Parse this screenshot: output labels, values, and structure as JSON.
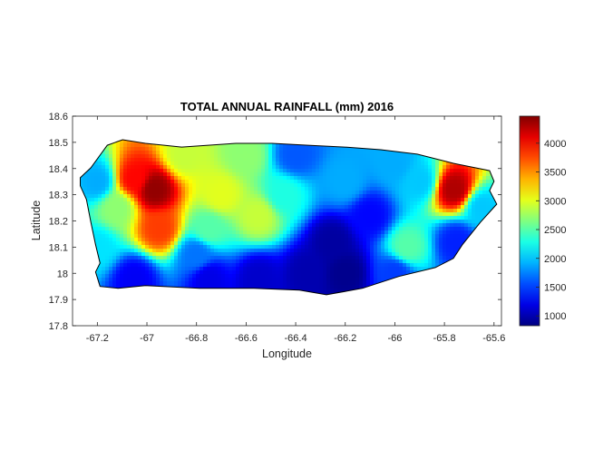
{
  "chart_data": {
    "type": "heatmap",
    "title": "TOTAL ANNUAL RAINFALL (mm) 2016",
    "xlabel": "Longitude",
    "ylabel": "Latitude",
    "xlim": [
      -67.3,
      -65.57
    ],
    "ylim": [
      17.8,
      18.6
    ],
    "xticks": [
      -67.2,
      -67,
      -66.8,
      -66.6,
      -66.4,
      -66.2,
      -66,
      -65.8,
      -65.6
    ],
    "xtick_labels": [
      "-67.2",
      "-67",
      "-66.8",
      "-66.6",
      "-66.4",
      "-66.2",
      "-66",
      "-65.8",
      "-65.6"
    ],
    "yticks": [
      17.8,
      17.9,
      18,
      18.1,
      18.2,
      18.3,
      18.4,
      18.5,
      18.6
    ],
    "ytick_labels": [
      "17.8",
      "17.9",
      "18",
      "18.1",
      "18.2",
      "18.3",
      "18.4",
      "18.5",
      "18.6"
    ],
    "colormap": "jet",
    "clim": [
      830,
      4470
    ],
    "colorbar_ticks": [
      1000,
      1500,
      2000,
      2500,
      3000,
      3500,
      4000
    ],
    "colorbar_tick_labels": [
      "1000",
      "1500",
      "2000",
      "2500",
      "3000",
      "3500",
      "4000"
    ],
    "grid": false,
    "coastline": [
      [
        -67.269,
        18.365
      ],
      [
        -67.226,
        18.403
      ],
      [
        -67.16,
        18.489
      ],
      [
        -67.098,
        18.51
      ],
      [
        -67.006,
        18.496
      ],
      [
        -66.86,
        18.482
      ],
      [
        -66.641,
        18.496
      ],
      [
        -66.495,
        18.496
      ],
      [
        -66.349,
        18.489
      ],
      [
        -66.203,
        18.482
      ],
      [
        -66.057,
        18.472
      ],
      [
        -65.91,
        18.455
      ],
      [
        -65.764,
        18.42
      ],
      [
        -65.618,
        18.392
      ],
      [
        -65.6,
        18.351
      ],
      [
        -65.618,
        18.316
      ],
      [
        -65.589,
        18.264
      ],
      [
        -65.655,
        18.195
      ],
      [
        -65.728,
        18.109
      ],
      [
        -65.764,
        18.057
      ],
      [
        -65.837,
        18.022
      ],
      [
        -65.984,
        17.988
      ],
      [
        -66.13,
        17.943
      ],
      [
        -66.276,
        17.918
      ],
      [
        -66.385,
        17.936
      ],
      [
        -66.568,
        17.943
      ],
      [
        -66.787,
        17.943
      ],
      [
        -67.006,
        17.953
      ],
      [
        -67.116,
        17.943
      ],
      [
        -67.189,
        17.95
      ],
      [
        -67.207,
        18.005
      ],
      [
        -67.189,
        18.039
      ],
      [
        -67.207,
        18.109
      ],
      [
        -67.226,
        18.195
      ],
      [
        -67.244,
        18.282
      ],
      [
        -67.269,
        18.334
      ]
    ],
    "rainfall_points": [
      {
        "lon": -66.97,
        "lat": 18.32,
        "mm": 4400
      },
      {
        "lon": -67.05,
        "lat": 18.36,
        "mm": 4000
      },
      {
        "lon": -66.95,
        "lat": 18.17,
        "mm": 3800
      },
      {
        "lon": -65.76,
        "lat": 18.32,
        "mm": 4300
      },
      {
        "lon": -66.7,
        "lat": 18.3,
        "mm": 3000
      },
      {
        "lon": -66.55,
        "lat": 18.22,
        "mm": 2900
      },
      {
        "lon": -66.75,
        "lat": 18.17,
        "mm": 2500
      },
      {
        "lon": -67.12,
        "lat": 18.25,
        "mm": 2700
      },
      {
        "lon": -67.2,
        "lat": 18.35,
        "mm": 1900
      },
      {
        "lon": -67.2,
        "lat": 18.1,
        "mm": 2100
      },
      {
        "lon": -66.85,
        "lat": 18.45,
        "mm": 2900
      },
      {
        "lon": -66.6,
        "lat": 18.45,
        "mm": 2700
      },
      {
        "lon": -66.4,
        "lat": 18.45,
        "mm": 1600
      },
      {
        "lon": -66.45,
        "lat": 18.3,
        "mm": 2300
      },
      {
        "lon": -66.2,
        "lat": 18.35,
        "mm": 1900
      },
      {
        "lon": -66.0,
        "lat": 18.42,
        "mm": 1900
      },
      {
        "lon": -65.9,
        "lat": 18.35,
        "mm": 2000
      },
      {
        "lon": -66.1,
        "lat": 18.22,
        "mm": 1300
      },
      {
        "lon": -66.25,
        "lat": 18.12,
        "mm": 950
      },
      {
        "lon": -66.2,
        "lat": 18.0,
        "mm": 880
      },
      {
        "lon": -66.35,
        "lat": 18.0,
        "mm": 1000
      },
      {
        "lon": -66.55,
        "lat": 17.98,
        "mm": 1100
      },
      {
        "lon": -66.75,
        "lat": 17.98,
        "mm": 1200
      },
      {
        "lon": -67.05,
        "lat": 17.98,
        "mm": 1250
      },
      {
        "lon": -66.8,
        "lat": 18.07,
        "mm": 1700
      },
      {
        "lon": -65.95,
        "lat": 18.1,
        "mm": 2500
      },
      {
        "lon": -65.75,
        "lat": 18.12,
        "mm": 1400
      },
      {
        "lon": -65.65,
        "lat": 18.25,
        "mm": 2000
      },
      {
        "lon": -66.0,
        "lat": 18.0,
        "mm": 1500
      }
    ]
  }
}
